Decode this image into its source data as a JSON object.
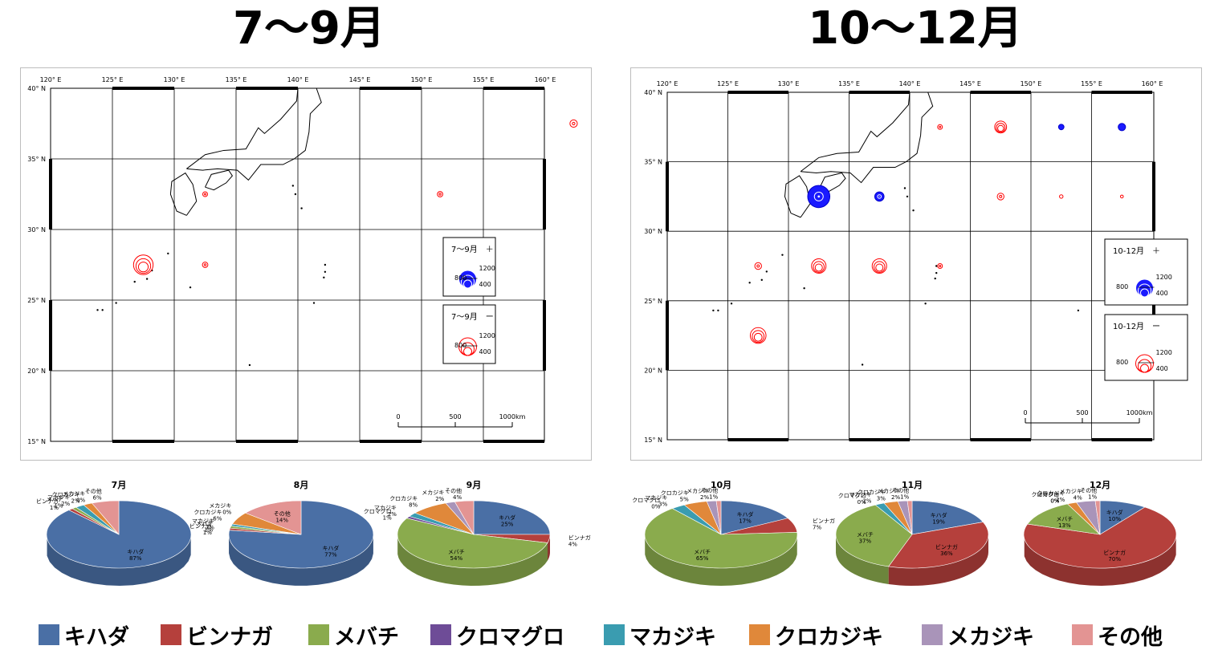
{
  "titles": {
    "left": "7～9月",
    "right": "10～12月"
  },
  "map_axes": {
    "lon_labels": [
      "120° E",
      "125° E",
      "130° E",
      "135° E",
      "140° E",
      "145° E",
      "150° E",
      "155° E",
      "160° E"
    ],
    "lat_labels": [
      "40° N",
      "35° N",
      "30° N",
      "25° N",
      "20° N",
      "15° N"
    ],
    "scale_labels": [
      "0",
      "500",
      "1000km"
    ]
  },
  "map_left": {
    "legend_plus": {
      "title": "7～9月　＋",
      "v1200": "1200",
      "v800": "800",
      "v400": "400"
    },
    "legend_minus": {
      "title": "7～9月　ー",
      "v1200": "1200",
      "v800": "800",
      "v400": "400"
    },
    "markers": [
      {
        "lon": 162.3,
        "lat": 37.5,
        "type": "minus",
        "scale": 0.9
      },
      {
        "lon": 151.5,
        "lat": 32.5,
        "type": "minus",
        "scale": 0.6
      },
      {
        "lon": 132.5,
        "lat": 32.5,
        "type": "minus",
        "scale": 0.5
      },
      {
        "lon": 127.5,
        "lat": 27.5,
        "type": "minus",
        "scale": 2.8
      },
      {
        "lon": 132.5,
        "lat": 27.5,
        "type": "minus",
        "scale": 0.6
      }
    ]
  },
  "map_right": {
    "legend_plus": {
      "title": "10-12月　＋",
      "v1200": "1200",
      "v800": "800",
      "v400": "400"
    },
    "legend_minus": {
      "title": "10-12月　ー",
      "v1200": "1200",
      "v800": "800",
      "v400": "400"
    },
    "markers": [
      {
        "lon": 142.5,
        "lat": 37.5,
        "type": "minus",
        "scale": 0.5
      },
      {
        "lon": 147.5,
        "lat": 37.5,
        "type": "minus",
        "scale": 1.6
      },
      {
        "lon": 152.5,
        "lat": 37.5,
        "type": "plus",
        "scale": 0.6
      },
      {
        "lon": 157.5,
        "lat": 37.5,
        "type": "plus",
        "scale": 0.9
      },
      {
        "lon": 132.5,
        "lat": 32.5,
        "type": "plus",
        "scale": 3.2
      },
      {
        "lon": 137.5,
        "lat": 32.5,
        "type": "plus",
        "scale": 1.2
      },
      {
        "lon": 147.5,
        "lat": 32.5,
        "type": "minus",
        "scale": 0.8
      },
      {
        "lon": 152.5,
        "lat": 32.5,
        "type": "minus",
        "scale": 0.3
      },
      {
        "lon": 157.5,
        "lat": 32.5,
        "type": "minus",
        "scale": 0.2
      },
      {
        "lon": 127.5,
        "lat": 27.5,
        "type": "minus",
        "scale": 0.8
      },
      {
        "lon": 132.5,
        "lat": 27.5,
        "type": "minus",
        "scale": 2.0
      },
      {
        "lon": 137.5,
        "lat": 27.5,
        "type": "minus",
        "scale": 2.0
      },
      {
        "lon": 142.5,
        "lat": 27.5,
        "type": "minus",
        "scale": 0.5
      },
      {
        "lon": 127.5,
        "lat": 22.5,
        "type": "minus",
        "scale": 2.2
      }
    ]
  },
  "chart_data": [
    {
      "type": "pie",
      "title": "7月",
      "slices": [
        {
          "label": "キハダ",
          "value": 87
        },
        {
          "label": "ビンナガ",
          "value": 1
        },
        {
          "label": "メバチ",
          "value": 1
        },
        {
          "label": "マカジキ",
          "value": 2
        },
        {
          "label": "クロカジキ",
          "value": 2
        },
        {
          "label": "メカジキ",
          "value": 0
        },
        {
          "label": "その他",
          "value": 6
        }
      ]
    },
    {
      "type": "pie",
      "title": "8月",
      "slices": [
        {
          "label": "キハダ",
          "value": 77
        },
        {
          "label": "ビンナガ",
          "value": 1
        },
        {
          "label": "メバチ",
          "value": 1
        },
        {
          "label": "マカジキ",
          "value": 1
        },
        {
          "label": "クロカジキ",
          "value": 6
        },
        {
          "label": "メカジキ",
          "value": 0
        },
        {
          "label": "その他",
          "value": 14
        }
      ]
    },
    {
      "type": "pie",
      "title": "9月",
      "slices": [
        {
          "label": "キハダ",
          "value": 25
        },
        {
          "label": "ビンナガ",
          "value": 4
        },
        {
          "label": "メバチ",
          "value": 54
        },
        {
          "label": "クロマグロ",
          "value": 1
        },
        {
          "label": "マカジキ",
          "value": 2
        },
        {
          "label": "クロカジキ",
          "value": 8
        },
        {
          "label": "メカジキ",
          "value": 2
        },
        {
          "label": "その他",
          "value": 4
        }
      ]
    },
    {
      "type": "pie",
      "title": "10月",
      "slices": [
        {
          "label": "キハダ",
          "value": 17
        },
        {
          "label": "ビンナガ",
          "value": 7
        },
        {
          "label": "メバチ",
          "value": 65
        },
        {
          "label": "クロマグロ",
          "value": 0
        },
        {
          "label": "マカジキ",
          "value": 3
        },
        {
          "label": "クロカジキ",
          "value": 5
        },
        {
          "label": "メカジキ",
          "value": 2
        },
        {
          "label": "その他",
          "value": 1
        }
      ]
    },
    {
      "type": "pie",
      "title": "11月",
      "slices": [
        {
          "label": "キハダ",
          "value": 19
        },
        {
          "label": "ビンナガ",
          "value": 36
        },
        {
          "label": "メバチ",
          "value": 37
        },
        {
          "label": "クロマグロ",
          "value": 0
        },
        {
          "label": "マカジキ",
          "value": 2
        },
        {
          "label": "クロカジキ",
          "value": 3
        },
        {
          "label": "メカジキ",
          "value": 2
        },
        {
          "label": "その他",
          "value": 1
        }
      ]
    },
    {
      "type": "pie",
      "title": "12月",
      "slices": [
        {
          "label": "キハダ",
          "value": 10
        },
        {
          "label": "ビンナガ",
          "value": 70
        },
        {
          "label": "メバチ",
          "value": 13
        },
        {
          "label": "クロマグロ",
          "value": 0
        },
        {
          "label": "マカジキ",
          "value": 0
        },
        {
          "label": "クロカジキ",
          "value": 2
        },
        {
          "label": "メカジキ",
          "value": 4
        },
        {
          "label": "その他",
          "value": 1
        }
      ]
    }
  ],
  "legend": [
    {
      "label": "キハダ",
      "color": "#4a6fa5"
    },
    {
      "label": "ビンナガ",
      "color": "#b5403c"
    },
    {
      "label": "メバチ",
      "color": "#8aab4d"
    },
    {
      "label": "クロマグロ",
      "color": "#6e4c97"
    },
    {
      "label": "マカジキ",
      "color": "#3a9cb0"
    },
    {
      "label": "クロカジキ",
      "color": "#e0883a"
    },
    {
      "label": "メカジキ",
      "color": "#a994b9"
    },
    {
      "label": "その他",
      "color": "#e39493"
    }
  ],
  "colors": {
    "plus": "#1a1aff",
    "minus": "#ff0000"
  }
}
